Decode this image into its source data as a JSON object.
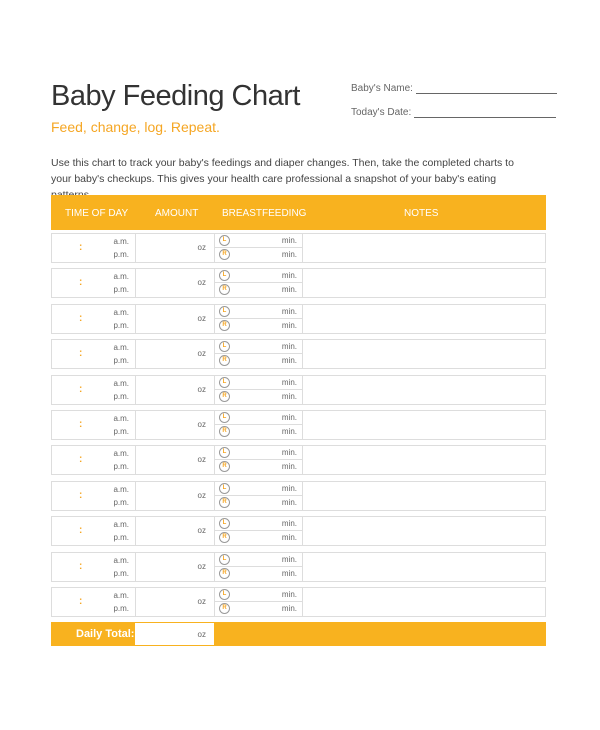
{
  "header": {
    "title": "Baby Feeding Chart",
    "subtitle": "Feed, change, log. Repeat.",
    "baby_name_label": "Baby's Name:",
    "date_label": "Today's Date:"
  },
  "intro": "Use this chart to track your baby's feedings and diaper changes. Then, take the completed charts to your baby's checkups. This gives your health care professional a snapshot of your baby's eating patterns.",
  "table": {
    "columns": [
      "TIME OF DAY",
      "AMOUNT",
      "BREASTFEEDING",
      "NOTES"
    ],
    "row_labels": {
      "colon": ":",
      "am": "a.m.",
      "pm": "p.m.",
      "oz": "oz",
      "left": "L",
      "right": "R",
      "min": "min."
    },
    "row_count": 11,
    "daily_total_label": "Daily Total:",
    "daily_total_unit": "oz"
  },
  "colors": {
    "accent": "#f8b21f"
  }
}
